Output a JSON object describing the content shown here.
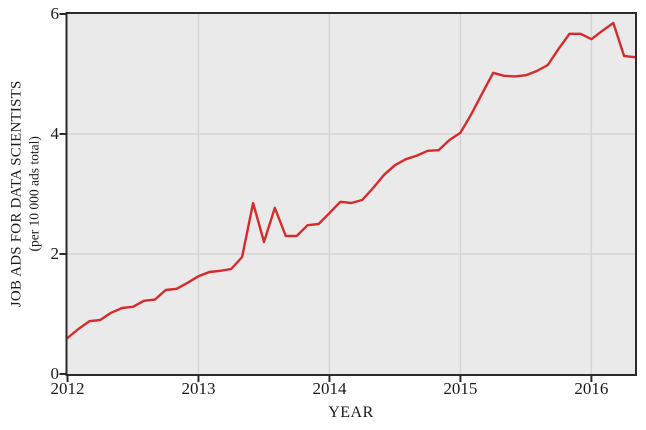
{
  "chart_data": {
    "type": "line",
    "title": "",
    "xlabel": "YEAR",
    "ylabel": "JOB ADS FOR DATA SCIENTISTS",
    "ylabel_sub": "(per 10 000 ads total)",
    "x_tick_labels": [
      "2012",
      "2013",
      "2014",
      "2015",
      "2016"
    ],
    "x_tick_years": [
      2012,
      2013,
      2014,
      2015,
      2016
    ],
    "y_tick_labels": [
      "0",
      "2",
      "4",
      "6"
    ],
    "y_tick_values": [
      0,
      2,
      4,
      6
    ],
    "xlim": [
      2012,
      2016.333
    ],
    "ylim": [
      0,
      6
    ],
    "grid": "on",
    "legend": "none",
    "colors": {
      "line": "#d62b2b",
      "plot_bg": "#eaeaea",
      "grid": "#d4d4d4",
      "frame": "#2b2b2b",
      "text": "#1a1a1a"
    },
    "series": [
      {
        "name": "job-ads-for-data-scientists",
        "color": "#d62b2b",
        "x": [
          2012.0,
          2012.083,
          2012.167,
          2012.25,
          2012.333,
          2012.417,
          2012.5,
          2012.583,
          2012.667,
          2012.75,
          2012.833,
          2012.917,
          2013.0,
          2013.083,
          2013.167,
          2013.25,
          2013.333,
          2013.417,
          2013.5,
          2013.583,
          2013.667,
          2013.75,
          2013.833,
          2013.917,
          2014.0,
          2014.083,
          2014.167,
          2014.25,
          2014.333,
          2014.417,
          2014.5,
          2014.583,
          2014.667,
          2014.75,
          2014.833,
          2014.917,
          2015.0,
          2015.083,
          2015.167,
          2015.25,
          2015.333,
          2015.417,
          2015.5,
          2015.583,
          2015.667,
          2015.75,
          2015.833,
          2015.917,
          2016.0,
          2016.083,
          2016.167,
          2016.25,
          2016.333
        ],
        "values": [
          0.6,
          0.75,
          0.88,
          0.9,
          1.02,
          1.1,
          1.12,
          1.22,
          1.24,
          1.4,
          1.42,
          1.52,
          1.63,
          1.7,
          1.72,
          1.75,
          1.95,
          2.85,
          2.2,
          2.77,
          2.3,
          2.3,
          2.48,
          2.5,
          2.68,
          2.87,
          2.85,
          2.9,
          3.1,
          3.32,
          3.48,
          3.58,
          3.64,
          3.72,
          3.73,
          3.9,
          4.02,
          4.33,
          4.68,
          5.02,
          4.97,
          4.96,
          4.98,
          5.05,
          5.15,
          5.42,
          5.67,
          5.67,
          5.58,
          5.72,
          5.85,
          5.3,
          5.28
        ]
      }
    ]
  }
}
